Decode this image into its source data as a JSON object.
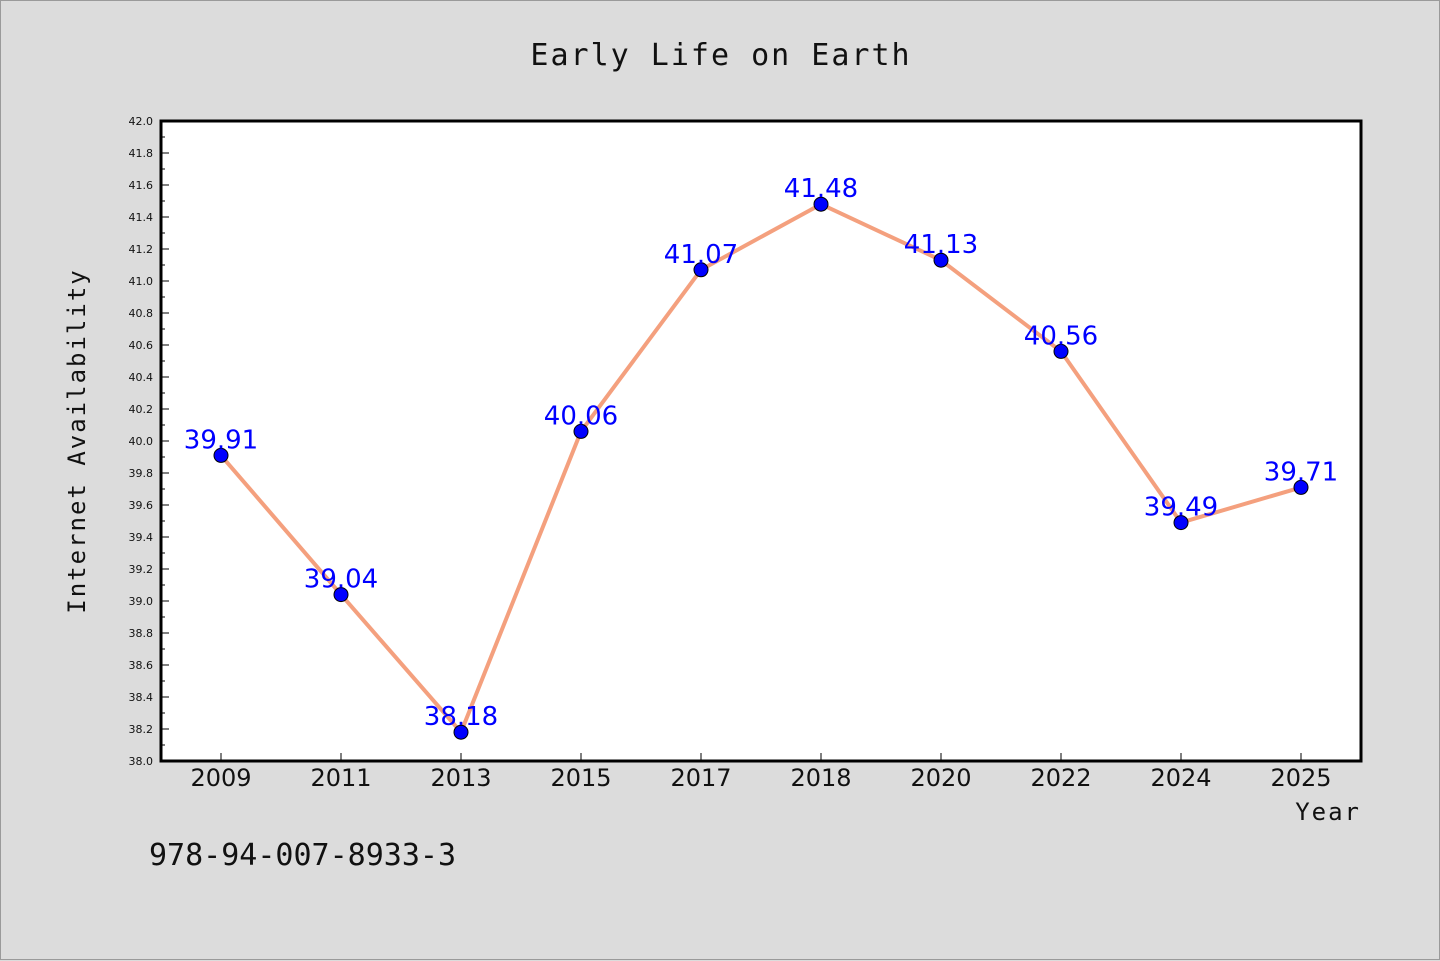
{
  "chart_data": {
    "type": "line",
    "title": "Early Life on Earth",
    "xlabel": "Year",
    "ylabel": "Internet Availability",
    "categories": [
      "2009",
      "2011",
      "2013",
      "2015",
      "2017",
      "2018",
      "2020",
      "2022",
      "2024",
      "2025"
    ],
    "series": [
      {
        "values": [
          39.91,
          39.04,
          38.18,
          40.06,
          41.07,
          41.48,
          41.13,
          40.56,
          39.49,
          39.71
        ],
        "labels": [
          "39.91",
          "39.04",
          "38.18",
          "40.06",
          "41.07",
          "41.48",
          "41.13",
          "40.56",
          "39.49",
          "39.71"
        ],
        "line_color": "#f4a07e",
        "marker_color": "#0000ff"
      }
    ],
    "ylim": [
      38.0,
      42.0
    ],
    "yticks": [
      "38.0",
      "38.2",
      "38.4",
      "38.6",
      "38.8",
      "39.0",
      "39.2",
      "39.4",
      "39.6",
      "39.8",
      "40.0",
      "40.2",
      "40.4",
      "40.6",
      "40.8",
      "41.0",
      "41.2",
      "41.4",
      "41.6",
      "41.8",
      "42.0"
    ],
    "grid": false,
    "legend": "none",
    "plot_background": "#ffffff",
    "figure_background": "#dcdcdc"
  },
  "footer": {
    "isbn": "978-94-007-8933-3"
  }
}
